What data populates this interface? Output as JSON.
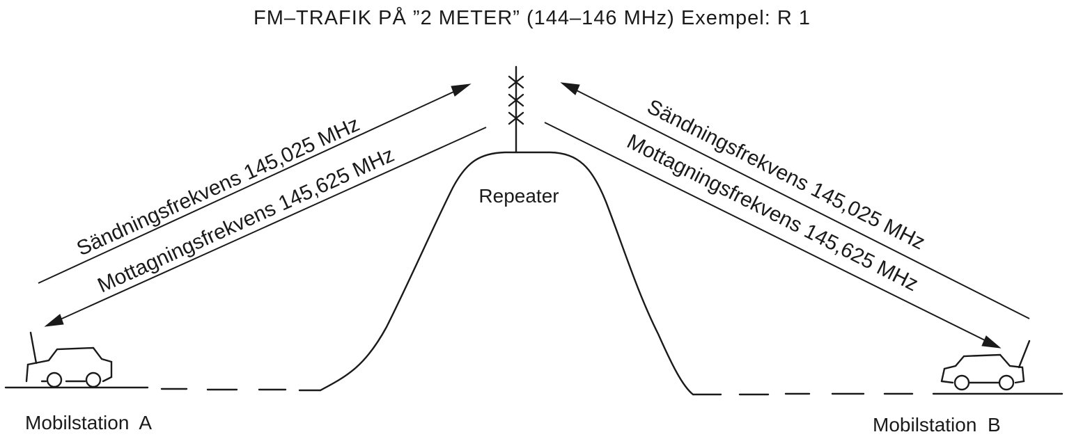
{
  "title": "FM–TRAFIK PÅ ”2 METER” (144–146 MHz)  Exempel: R 1",
  "repeater_label": "Repeater",
  "left_link": {
    "tx": "Sändningsfrekvens 145,025 MHz",
    "rx": "Mottagningsfrekvens 145,625 MHz"
  },
  "right_link": {
    "tx": "Sändningsfrekvens 145,025 MHz",
    "rx": "Mottagningsfrekvens 145,625 MHz"
  },
  "station_a": "Mobilstation  A",
  "station_b": "Mobilstation  B",
  "colors": {
    "ink": "#1a1a1a",
    "background": "#ffffff"
  },
  "icons": [
    "repeater-antenna",
    "car-a",
    "car-b",
    "mountain"
  ]
}
